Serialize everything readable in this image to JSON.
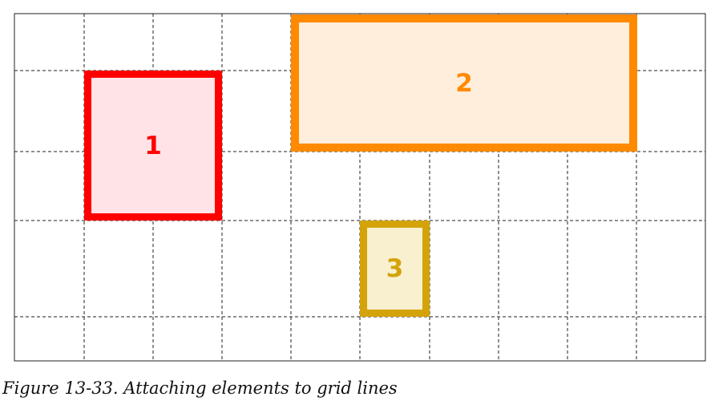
{
  "figure": {
    "caption": "Figure 13-33. Attaching elements to grid lines",
    "items": [
      {
        "label": "1",
        "border_color": "#ff0000",
        "fill_color": "#ffe3e6"
      },
      {
        "label": "2",
        "border_color": "#ff8a00",
        "fill_color": "#ffeedb"
      },
      {
        "label": "3",
        "border_color": "#d4a30a",
        "fill_color": "#f8f0cf"
      }
    ],
    "grid_line_color": "#222222"
  }
}
